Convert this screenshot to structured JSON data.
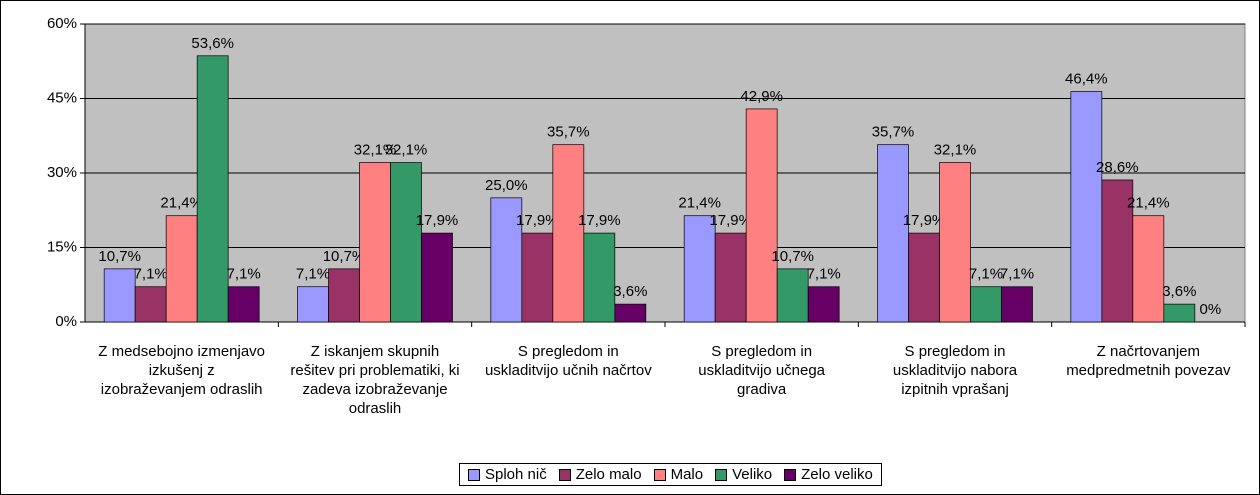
{
  "chart_data": {
    "type": "bar",
    "categories": [
      "Z medsebojno izmenjavo izkušenj z izobraževanjem odraslih",
      "Z iskanjem skupnih rešitev pri problematiki, ki zadeva izobraževanje odraslih",
      "S pregledom in uskladitvijo učnih načrtov",
      "S pregledom in uskladitvijo učnega gradiva",
      "S pregledom in uskladitvijo nabora izpitnih vprašanj",
      "Z načrtovanjem medpredmetnih povezav"
    ],
    "series": [
      {
        "name": "Sploh nič",
        "color": "#9999ff",
        "values": [
          10.7,
          7.1,
          25.0,
          21.4,
          35.7,
          46.4
        ],
        "value_labels": [
          "10,7%",
          "7,1%",
          "25,0%",
          "21,4%",
          "35,7%",
          "46,4%"
        ]
      },
      {
        "name": "Zelo malo",
        "color": "#993366",
        "values": [
          7.1,
          10.7,
          17.9,
          17.9,
          17.9,
          28.6
        ],
        "value_labels": [
          "7,1%",
          "10,7%",
          "17,9%",
          "17,9%",
          "17,9%",
          "28,6%"
        ]
      },
      {
        "name": "Malo",
        "color": "#ff8080",
        "values": [
          21.4,
          32.1,
          35.7,
          42.9,
          32.1,
          21.4
        ],
        "value_labels": [
          "21,4%",
          "32,1%",
          "35,7%",
          "42,9%",
          "32,1%",
          "21,4%"
        ]
      },
      {
        "name": "Veliko",
        "color": "#339966",
        "values": [
          53.6,
          32.1,
          17.9,
          10.7,
          7.1,
          3.6
        ],
        "value_labels": [
          "53,6%",
          "32,1%",
          "17,9%",
          "10,7%",
          "7,1%",
          "3,6%"
        ]
      },
      {
        "name": "Zelo veliko",
        "color": "#660066",
        "values": [
          7.1,
          17.9,
          3.6,
          7.1,
          7.1,
          0
        ],
        "value_labels": [
          "7,1%",
          "17,9%",
          "3,6%",
          "7,1%",
          "7,1%",
          "0%"
        ]
      }
    ],
    "ylim": [
      0,
      60
    ],
    "yticks": [
      {
        "value": 0,
        "label": "0%"
      },
      {
        "value": 15,
        "label": "15%"
      },
      {
        "value": 30,
        "label": "30%"
      },
      {
        "value": 45,
        "label": "45%"
      },
      {
        "value": 60,
        "label": "60%"
      }
    ],
    "grid": true,
    "legend": "bottom",
    "plot_background": "#c0c0c0"
  }
}
